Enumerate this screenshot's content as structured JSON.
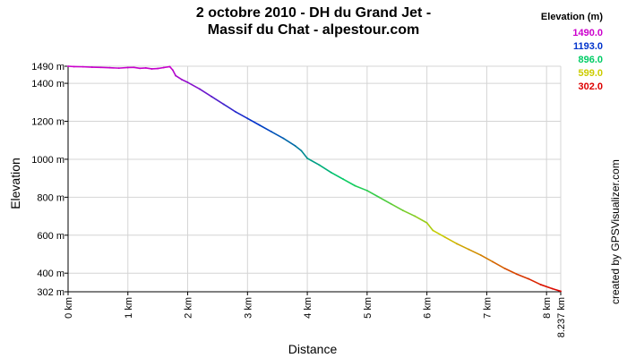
{
  "header": {
    "title_line1": "2 octobre 2010 - DH du Grand Jet -",
    "title_line2": "Massif du Chat - alpestour.com"
  },
  "legend": {
    "title": "Elevation (m)",
    "entries": [
      {
        "label": "1490.0",
        "color": "#cc00cc"
      },
      {
        "label": "1193.0",
        "color": "#0033cc"
      },
      {
        "label": "896.0",
        "color": "#00cc66"
      },
      {
        "label": "599.0",
        "color": "#cccc00"
      },
      {
        "label": "302.0",
        "color": "#dd0000"
      }
    ]
  },
  "credit": "created by GPSVisualizer.com",
  "chart_data": {
    "type": "line",
    "xlabel": "Distance",
    "ylabel": "Elevation",
    "xlim": [
      0,
      8.237
    ],
    "ylim": [
      302,
      1490
    ],
    "grid": true,
    "x_ticks": [
      {
        "v": 0,
        "label": "0 km"
      },
      {
        "v": 1,
        "label": "1 km"
      },
      {
        "v": 2,
        "label": "2 km"
      },
      {
        "v": 3,
        "label": "3 km"
      },
      {
        "v": 4,
        "label": "4 km"
      },
      {
        "v": 5,
        "label": "5 km"
      },
      {
        "v": 6,
        "label": "6 km"
      },
      {
        "v": 7,
        "label": "7 km"
      },
      {
        "v": 8,
        "label": "8 km"
      },
      {
        "v": 8.237,
        "label": "8.237 km"
      }
    ],
    "y_ticks": [
      {
        "v": 302,
        "label": "302 m"
      },
      {
        "v": 400,
        "label": "400 m"
      },
      {
        "v": 600,
        "label": "600 m"
      },
      {
        "v": 800,
        "label": "800 m"
      },
      {
        "v": 1000,
        "label": "1000 m"
      },
      {
        "v": 1200,
        "label": "1200 m"
      },
      {
        "v": 1400,
        "label": "1400 m"
      },
      {
        "v": 1490,
        "label": "1490 m"
      }
    ],
    "color_scale": [
      {
        "value": 302,
        "color": "#dd0000"
      },
      {
        "value": 599,
        "color": "#cccc00"
      },
      {
        "value": 896,
        "color": "#00cc66"
      },
      {
        "value": 1193,
        "color": "#0033cc"
      },
      {
        "value": 1490,
        "color": "#cc00cc"
      }
    ],
    "series": [
      {
        "x": [
          0,
          0.1,
          0.25,
          0.4,
          0.55,
          0.7,
          0.85,
          1.0,
          1.1,
          1.2,
          1.3,
          1.4,
          1.5,
          1.6,
          1.7,
          1.75,
          1.8,
          1.9,
          2.0,
          2.2,
          2.4,
          2.6,
          2.8,
          3.0,
          3.2,
          3.4,
          3.6,
          3.8,
          3.9,
          4.0,
          4.2,
          4.4,
          4.6,
          4.8,
          5.0,
          5.2,
          5.4,
          5.6,
          5.8,
          6.0,
          6.1,
          6.3,
          6.5,
          6.7,
          6.9,
          7.1,
          7.3,
          7.5,
          7.7,
          7.9,
          8.1,
          8.237
        ],
        "y": [
          1490,
          1488,
          1487,
          1485,
          1484,
          1482,
          1480,
          1483,
          1484,
          1479,
          1481,
          1476,
          1478,
          1483,
          1488,
          1470,
          1440,
          1420,
          1405,
          1370,
          1330,
          1290,
          1250,
          1215,
          1180,
          1145,
          1110,
          1070,
          1045,
          1005,
          970,
          930,
          895,
          860,
          835,
          800,
          765,
          730,
          700,
          665,
          625,
          590,
          555,
          525,
          495,
          460,
          425,
          395,
          370,
          340,
          318,
          305
        ]
      }
    ]
  }
}
